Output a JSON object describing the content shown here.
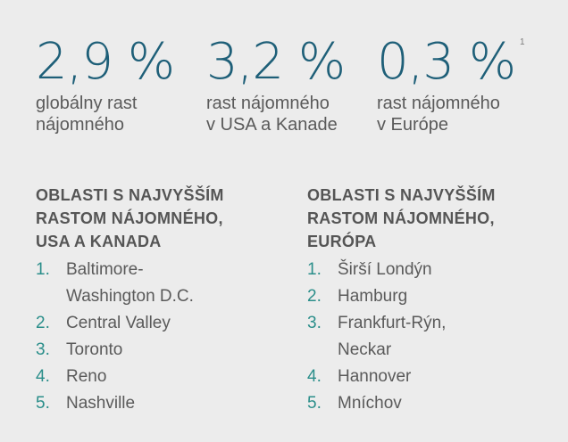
{
  "stats": [
    {
      "value": "2,9 %",
      "description": "globálny rast\nnájomného"
    },
    {
      "value": "3,2 %",
      "description": "rast nájomného\nv USA a Kanade"
    },
    {
      "value": "0,3 %",
      "description": "rast nájomného\nv Európe"
    }
  ],
  "footnote_marker": "1",
  "regions": [
    {
      "title": "OBLASTI S NAJVYŠŠÍM\nRASTOM NÁJOMNÉHO,\nUSA A KANADA",
      "items": [
        {
          "num": "1.",
          "text": "Baltimore-\nWashington D.C."
        },
        {
          "num": "2.",
          "text": "Central Valley"
        },
        {
          "num": "3.",
          "text": "Toronto"
        },
        {
          "num": "4.",
          "text": "Reno"
        },
        {
          "num": "5.",
          "text": "Nashville"
        }
      ]
    },
    {
      "title": "OBLASTI S NAJVYŠŠÍM\nRASTOM NÁJOMNÉHO,\nEURÓPA",
      "items": [
        {
          "num": "1.",
          "text": "Širší Londýn"
        },
        {
          "num": "2.",
          "text": "Hamburg"
        },
        {
          "num": "3.",
          "text": "Frankfurt-Rýn,\nNeckar"
        },
        {
          "num": "4.",
          "text": "Hannover"
        },
        {
          "num": "5.",
          "text": "Mníchov"
        }
      ]
    }
  ],
  "colors": {
    "background": "#ececec",
    "stat_value": "#1e5f78",
    "list_number": "#2a8e8a",
    "text": "#5a5a5a"
  }
}
